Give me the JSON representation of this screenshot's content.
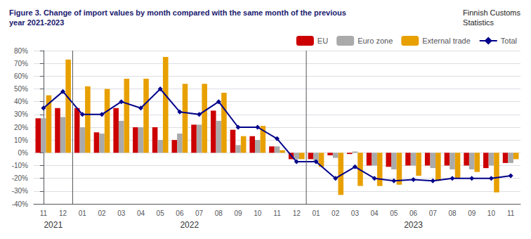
{
  "chart_data": {
    "type": "bar",
    "title": "Figure 3. Change of import values by month compared with the same month of the previous\nyear 2021-2023",
    "subtitle": "Finnish Customs\nStatistics",
    "categories": [
      "11",
      "12",
      "01",
      "02",
      "03",
      "04",
      "05",
      "06",
      "07",
      "08",
      "09",
      "10",
      "11",
      "12",
      "01",
      "02",
      "03",
      "04",
      "05",
      "06",
      "07",
      "08",
      "09",
      "10",
      "11"
    ],
    "series": [
      {
        "name": "EU",
        "type": "bar",
        "color": "#cc0000",
        "values": [
          27,
          35,
          35,
          16,
          35,
          20,
          20,
          10,
          22,
          33,
          18,
          13,
          5,
          -5,
          -5,
          -2,
          -1,
          -10,
          -11,
          -10,
          -10,
          -10,
          -10,
          -12,
          -8
        ]
      },
      {
        "name": "Euro zone",
        "type": "bar",
        "color": "#aaaaaa",
        "values": [
          27,
          28,
          20,
          15,
          25,
          20,
          10,
          15,
          22,
          25,
          6,
          10,
          5,
          -5,
          -7,
          -4,
          1,
          -10,
          -13,
          -10,
          -12,
          -13,
          -13,
          -10,
          -8
        ]
      },
      {
        "name": "External trade",
        "type": "bar",
        "color": "#e8a000",
        "values": [
          45,
          73,
          52,
          50,
          58,
          58,
          75,
          54,
          54,
          47,
          13,
          21,
          2,
          -5,
          -11,
          -33,
          -26,
          -26,
          -25,
          -18,
          -22,
          -20,
          -15,
          -31,
          -5
        ]
      },
      {
        "name": "Total",
        "type": "line",
        "color": "#00008b",
        "marker": "diamond",
        "values": [
          35,
          48,
          30,
          30,
          40,
          35,
          50,
          32,
          30,
          40,
          20,
          20,
          11,
          -7,
          -7,
          -20,
          -11,
          -20,
          -22,
          -21,
          -22,
          -20,
          -20,
          -20,
          -18
        ]
      }
    ],
    "ylim": [
      -40,
      80
    ],
    "yticks": [
      {
        "value": -40,
        "label": "-40%"
      },
      {
        "value": -30,
        "label": "-30%"
      },
      {
        "value": -20,
        "label": "-20%"
      },
      {
        "value": -10,
        "label": "-10%"
      },
      {
        "value": 0,
        "label": "0%"
      },
      {
        "value": 10,
        "label": "10%"
      },
      {
        "value": 20,
        "label": "20%"
      },
      {
        "value": 30,
        "label": "30%"
      },
      {
        "value": 40,
        "label": "40%"
      },
      {
        "value": 50,
        "label": "50%"
      },
      {
        "value": 60,
        "label": "60%"
      },
      {
        "value": 70,
        "label": "70%"
      },
      {
        "value": 80,
        "label": "80%"
      }
    ],
    "grid": true,
    "legend": "upper right",
    "dividers": [
      1.5,
      13.5
    ],
    "annotations": [
      {
        "text": "2021",
        "x": 0.5
      },
      {
        "text": "2022",
        "x": 7.5
      },
      {
        "text": "2023",
        "x": 19.0
      }
    ]
  }
}
